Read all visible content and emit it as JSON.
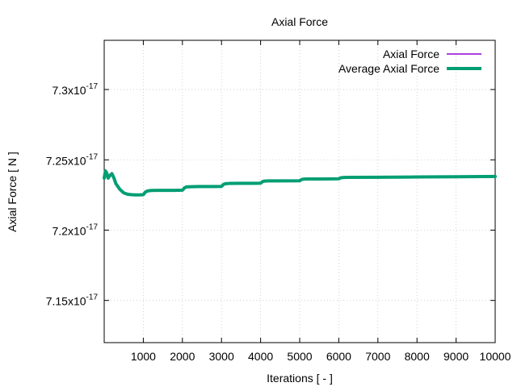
{
  "chart_data": {
    "type": "line",
    "title": "Axial Force",
    "xlabel": "Iterations [ - ]",
    "ylabel": "Axial Force [ N ]",
    "xlim": [
      0,
      10000
    ],
    "ylim": [
      7.12e-17,
      7.335e-17
    ],
    "grid": true,
    "legend_position": "top-right",
    "x_ticks": [
      {
        "value": 1000,
        "label": "1000"
      },
      {
        "value": 2000,
        "label": "2000"
      },
      {
        "value": 3000,
        "label": "3000"
      },
      {
        "value": 4000,
        "label": "4000"
      },
      {
        "value": 5000,
        "label": "5000"
      },
      {
        "value": 6000,
        "label": "6000"
      },
      {
        "value": 7000,
        "label": "7000"
      },
      {
        "value": 8000,
        "label": "8000"
      },
      {
        "value": 9000,
        "label": "9000"
      },
      {
        "value": 10000,
        "label": "10000"
      }
    ],
    "y_ticks": [
      {
        "value": 7.15e-17,
        "mantissa": "7.15x10",
        "exp": "-17"
      },
      {
        "value": 7.2e-17,
        "mantissa": "7.2x10",
        "exp": "-17"
      },
      {
        "value": 7.25e-17,
        "mantissa": "7.25x10",
        "exp": "-17"
      },
      {
        "value": 7.3e-17,
        "mantissa": "7.3x10",
        "exp": "-17"
      }
    ],
    "series": [
      {
        "name": "Axial Force",
        "color": "#9400d3",
        "x": [
          0,
          30,
          60,
          100,
          150,
          200,
          250,
          300,
          400,
          500,
          600,
          700,
          800,
          900,
          1000,
          1050,
          1100,
          1200,
          1400,
          1600,
          1800,
          2000,
          2050,
          2100,
          2200,
          2400,
          2600,
          2800,
          3000,
          3050,
          3100,
          3200,
          3500,
          3800,
          4000,
          4050,
          4100,
          4200,
          4500,
          5000,
          5050,
          5100,
          5200,
          5600,
          6000,
          6050,
          6100,
          6200,
          7000,
          8000,
          9000,
          10000
        ],
        "y": [
          7.237e-17,
          7.243e-17,
          7.241e-17,
          7.237e-17,
          7.24e-17,
          7.241e-17,
          7.237e-17,
          7.233e-17,
          7.229e-17,
          7.2265e-17,
          7.2255e-17,
          7.2252e-17,
          7.2251e-17,
          7.2251e-17,
          7.2252e-17,
          7.227e-17,
          7.2278e-17,
          7.2282e-17,
          7.2283e-17,
          7.2283e-17,
          7.2283e-17,
          7.2284e-17,
          7.23e-17,
          7.2307e-17,
          7.2309e-17,
          7.231e-17,
          7.231e-17,
          7.231e-17,
          7.2311e-17,
          7.2325e-17,
          7.233e-17,
          7.2332e-17,
          7.2333e-17,
          7.2333e-17,
          7.2334e-17,
          7.2345e-17,
          7.2349e-17,
          7.235e-17,
          7.235e-17,
          7.2351e-17,
          7.236e-17,
          7.2363e-17,
          7.2364e-17,
          7.2364e-17,
          7.2365e-17,
          7.2372e-17,
          7.2374e-17,
          7.2375e-17,
          7.2376e-17,
          7.2378e-17,
          7.238e-17,
          7.2382e-17
        ]
      },
      {
        "name": "Average Axial Force",
        "color": "#009e73",
        "x": [
          0,
          30,
          60,
          100,
          150,
          200,
          250,
          300,
          400,
          500,
          600,
          700,
          800,
          900,
          1000,
          1050,
          1100,
          1200,
          1400,
          1600,
          1800,
          2000,
          2050,
          2100,
          2200,
          2400,
          2600,
          2800,
          3000,
          3050,
          3100,
          3200,
          3500,
          3800,
          4000,
          4050,
          4100,
          4200,
          4500,
          5000,
          5050,
          5100,
          5200,
          5600,
          6000,
          6050,
          6100,
          6200,
          7000,
          8000,
          9000,
          10000
        ],
        "y": [
          7.237e-17,
          7.242e-17,
          7.241e-17,
          7.237e-17,
          7.239e-17,
          7.24e-17,
          7.237e-17,
          7.233e-17,
          7.229e-17,
          7.2265e-17,
          7.2255e-17,
          7.2252e-17,
          7.2251e-17,
          7.2251e-17,
          7.2252e-17,
          7.227e-17,
          7.2278e-17,
          7.2282e-17,
          7.2283e-17,
          7.2283e-17,
          7.2283e-17,
          7.2284e-17,
          7.23e-17,
          7.2307e-17,
          7.2309e-17,
          7.231e-17,
          7.231e-17,
          7.231e-17,
          7.2311e-17,
          7.2325e-17,
          7.233e-17,
          7.2332e-17,
          7.2333e-17,
          7.2333e-17,
          7.2334e-17,
          7.2345e-17,
          7.2349e-17,
          7.235e-17,
          7.235e-17,
          7.2351e-17,
          7.236e-17,
          7.2363e-17,
          7.2364e-17,
          7.2364e-17,
          7.2365e-17,
          7.2372e-17,
          7.2374e-17,
          7.2375e-17,
          7.2376e-17,
          7.2378e-17,
          7.238e-17,
          7.2382e-17
        ]
      }
    ]
  }
}
